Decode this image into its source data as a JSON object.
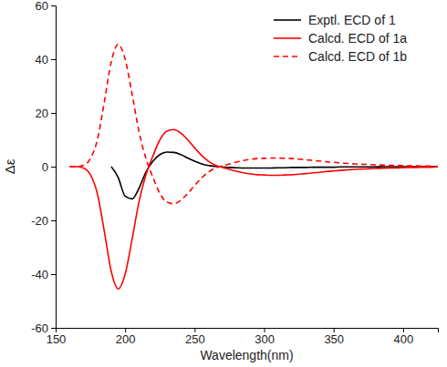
{
  "chart_data": {
    "type": "line",
    "x_label": "Wavelength(nm)",
    "y_label": "Δε",
    "x": [
      160,
      165,
      170,
      175,
      180,
      185,
      190,
      195,
      200,
      205,
      210,
      215,
      220,
      225,
      230,
      235,
      240,
      245,
      250,
      255,
      260,
      265,
      270,
      275,
      280,
      285,
      290,
      295,
      300,
      305,
      310,
      315,
      320,
      325,
      330,
      335,
      340,
      345,
      350,
      355,
      360,
      365,
      370,
      375,
      380,
      385,
      390,
      395,
      400,
      405,
      410,
      415,
      420,
      425
    ],
    "xlim": [
      150,
      425
    ],
    "xticks": [
      150,
      200,
      250,
      300,
      350,
      400
    ],
    "ylim": [
      -60,
      60
    ],
    "yticks": [
      -60,
      -40,
      -20,
      0,
      20,
      40,
      60
    ],
    "legend": "upper right",
    "series": [
      {
        "name": "Exptl. ECD of 1",
        "color": "#000000",
        "line_style": "solid",
        "values": [
          null,
          null,
          null,
          null,
          null,
          null,
          0,
          -4,
          -11,
          -12,
          -8,
          -2,
          2,
          4.5,
          5.4,
          5.3,
          4.5,
          3.2,
          2,
          1,
          0.4,
          0.1,
          -0.1,
          -0.3,
          -0.4,
          -0.5,
          -0.5,
          -0.5,
          -0.5,
          -0.5,
          -0.4,
          -0.4,
          -0.3,
          -0.3,
          -0.3,
          -0.2,
          -0.2,
          -0.2,
          -0.2,
          -0.1,
          -0.1,
          -0.1,
          -0.1,
          -0.1,
          -0.1,
          0,
          0,
          0,
          0,
          0,
          0,
          0,
          0,
          0
        ]
      },
      {
        "name": "Calcd. ECD of 1a",
        "color": "#ff0000",
        "line_style": "solid",
        "values": [
          0,
          0,
          -0.5,
          -3,
          -10,
          -24,
          -39,
          -45.5,
          -40,
          -27,
          -13,
          -3,
          4,
          10,
          13.2,
          13.8,
          12.5,
          10,
          7,
          4.2,
          2,
          0.5,
          -0.3,
          -1,
          -1.7,
          -2.3,
          -2.7,
          -3,
          -3.1,
          -3.2,
          -3.2,
          -3.1,
          -3,
          -2.8,
          -2.6,
          -2.3,
          -2.1,
          -1.8,
          -1.6,
          -1.4,
          -1.2,
          -1,
          -0.9,
          -0.8,
          -0.7,
          -0.6,
          -0.5,
          -0.5,
          -0.4,
          -0.3,
          -0.3,
          -0.2,
          -0.2,
          -0.1
        ]
      },
      {
        "name": "Calcd. ECD of 1b",
        "color": "#ff0000",
        "line_style": "dashed",
        "values": [
          0,
          0,
          0.5,
          3,
          10,
          24,
          39,
          45.5,
          40,
          27,
          13,
          3,
          -4,
          -10,
          -13.2,
          -13.8,
          -12.5,
          -10,
          -7,
          -4.2,
          -2,
          -0.5,
          0.3,
          1,
          1.7,
          2.3,
          2.7,
          3,
          3.1,
          3.2,
          3.2,
          3.1,
          3,
          2.8,
          2.6,
          2.3,
          2.1,
          1.8,
          1.6,
          1.4,
          1.2,
          1,
          0.9,
          0.8,
          0.7,
          0.6,
          0.5,
          0.5,
          0.4,
          0.3,
          0.3,
          0.2,
          0.2,
          0.1
        ]
      }
    ]
  }
}
